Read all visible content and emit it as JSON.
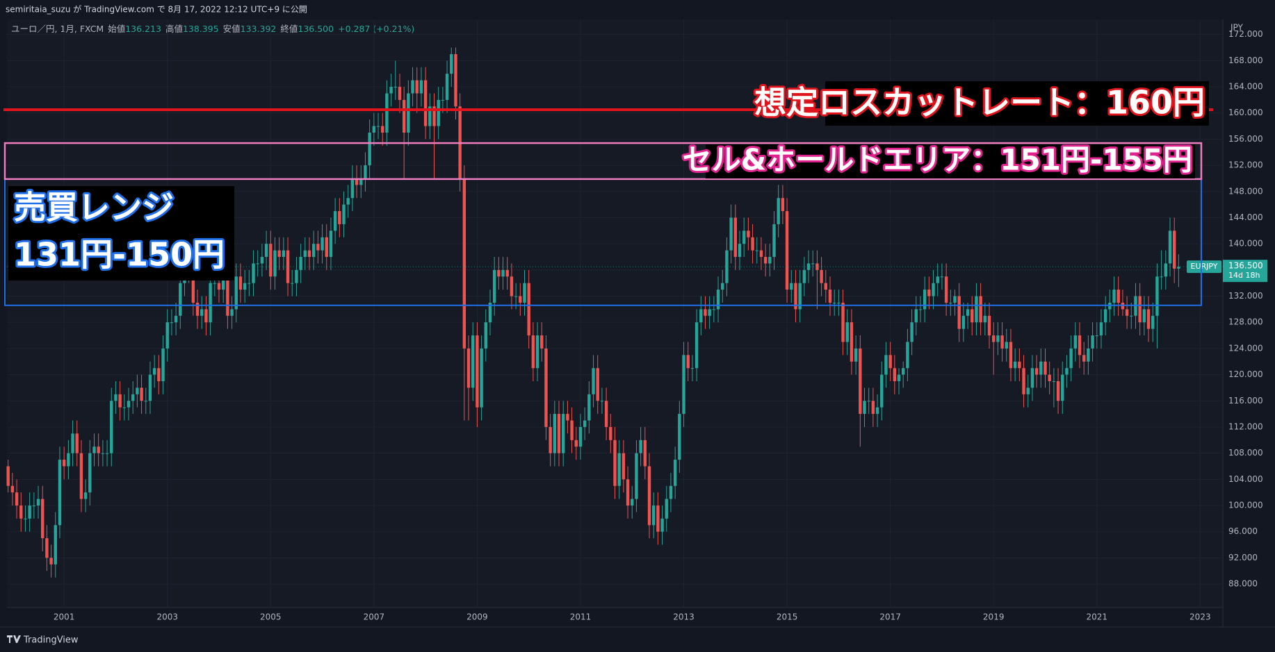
{
  "header": {
    "publisher": "semiritaia_suzu が TradingView.com で 8月 17, 2022 12:12 UTC+9 に公開",
    "brand": "TradingView"
  },
  "chart_data": {
    "type": "candlestick",
    "currency": "JPY",
    "symbol": "ユーロ／円, 1月, FXCM",
    "legend_items": [
      {
        "name": "始値",
        "value": "136.213"
      },
      {
        "name": "高値",
        "value": "138.395"
      },
      {
        "name": "安値",
        "value": "133.392"
      },
      {
        "name": "終値",
        "value": "136.500"
      }
    ],
    "change": "+0.287 (+0.21%)",
    "up_color": "#26a69a",
    "down_color": "#ef5350",
    "categories": [
      null,
      null,
      null,
      null,
      null,
      null,
      null,
      null,
      null,
      null,
      null,
      null,
      null,
      "2001",
      null,
      null,
      null,
      null,
      null,
      null,
      null,
      null,
      null,
      null,
      null,
      null,
      null,
      null,
      null,
      null,
      null,
      null,
      null,
      null,
      null,
      null,
      null,
      "2003",
      null,
      null,
      null,
      null,
      null,
      null,
      null,
      null,
      null,
      null,
      null,
      null,
      null,
      null,
      null,
      null,
      null,
      null,
      null,
      null,
      null,
      null,
      null,
      "2005",
      null,
      null,
      null,
      null,
      null,
      null,
      null,
      null,
      null,
      null,
      null,
      null,
      null,
      null,
      null,
      null,
      null,
      null,
      null,
      null,
      null,
      null,
      null,
      "2007",
      null,
      null,
      null,
      null,
      null,
      null,
      null,
      null,
      null,
      null,
      null,
      null,
      null,
      null,
      null,
      null,
      null,
      null,
      null,
      null,
      null,
      null,
      null,
      "2009",
      null,
      null,
      null,
      null,
      null,
      null,
      null,
      null,
      null,
      null,
      null,
      null,
      null,
      null,
      null,
      null,
      null,
      null,
      null,
      null,
      null,
      null,
      null,
      "2011",
      null,
      null,
      null,
      null,
      null,
      null,
      null,
      null,
      null,
      null,
      null,
      null,
      null,
      null,
      null,
      null,
      null,
      null,
      null,
      null,
      null,
      null,
      null,
      "2013",
      null,
      null,
      null,
      null,
      null,
      null,
      null,
      null,
      null,
      null,
      null,
      null,
      null,
      null,
      null,
      null,
      null,
      null,
      null,
      null,
      null,
      null,
      null,
      "2015",
      null,
      null,
      null,
      null,
      null,
      null,
      null,
      null,
      null,
      null,
      null,
      null,
      null,
      null,
      null,
      null,
      null,
      null,
      null,
      null,
      null,
      null,
      null,
      "2017",
      null,
      null,
      null,
      null,
      null,
      null,
      null,
      null,
      null,
      null,
      null,
      null,
      null,
      null,
      null,
      null,
      null,
      null,
      null,
      null,
      null,
      null,
      null,
      "2019",
      null,
      null,
      null,
      null,
      null,
      null,
      null,
      null,
      null,
      null,
      null,
      null,
      null,
      null,
      null,
      null,
      null,
      null,
      null,
      null,
      null,
      null,
      null,
      "2021",
      null,
      null,
      null,
      null,
      null,
      null,
      null,
      null,
      null,
      null,
      null,
      null,
      null,
      null,
      null,
      null,
      null,
      null,
      null,
      null,
      null,
      null,
      null,
      "2023"
    ],
    "open": [
      106,
      103,
      102,
      100,
      98,
      98,
      100,
      100,
      101,
      95,
      92,
      91,
      97,
      107,
      106,
      108,
      111,
      108,
      101,
      102,
      108,
      109,
      108,
      108,
      108,
      116,
      117,
      115,
      115,
      116,
      117,
      118,
      116,
      116,
      120,
      121,
      119,
      124,
      128,
      128,
      129,
      134,
      138,
      136,
      131,
      129,
      130,
      128,
      134,
      134,
      133,
      138,
      129,
      130,
      135,
      133,
      134,
      134,
      137,
      137,
      138,
      140,
      135,
      139,
      138,
      139,
      134,
      134,
      136,
      138,
      139,
      138,
      140,
      139,
      141,
      138,
      142,
      145,
      143,
      146,
      147,
      150,
      149,
      150,
      152,
      157,
      158,
      158,
      157,
      163,
      164,
      164,
      162,
      157,
      163,
      165,
      163,
      165,
      158,
      161,
      158,
      162,
      162,
      166,
      169,
      161,
      150,
      124,
      118,
      126,
      115,
      124,
      128,
      131,
      136,
      135,
      136,
      135,
      132,
      132,
      131,
      134,
      126,
      121,
      126,
      124,
      112,
      108,
      114,
      108,
      114,
      113,
      110,
      109,
      112,
      113,
      117,
      121,
      116,
      116,
      112,
      110,
      103,
      108,
      104,
      100,
      101,
      108,
      110,
      106,
      97,
      100,
      96,
      98,
      101,
      103,
      107,
      114,
      123,
      121,
      121,
      128,
      130,
      129,
      130,
      130,
      133,
      134,
      139,
      144,
      138,
      140,
      142,
      141,
      139,
      139,
      138,
      137,
      138,
      143,
      147,
      145,
      133,
      134,
      130,
      134,
      136,
      137,
      137,
      136,
      134,
      133,
      131,
      131,
      131,
      125,
      128,
      122,
      124,
      114,
      116,
      116,
      114,
      115,
      120,
      123,
      121,
      119,
      120,
      121,
      125,
      128,
      130,
      130,
      133,
      132,
      134,
      135,
      135,
      131,
      131,
      132,
      127,
      129,
      130,
      128,
      132,
      128,
      129,
      126,
      125,
      126,
      124,
      125,
      121,
      122,
      121,
      117,
      118,
      121,
      120,
      122,
      120,
      119,
      119,
      116,
      120,
      121,
      124,
      126,
      123,
      122,
      124,
      126,
      126,
      128,
      130,
      131,
      133,
      131,
      130,
      129,
      129,
      132,
      128,
      130,
      127,
      129,
      135,
      135,
      137,
      142,
      136.213,
      null,
      null,
      null,
      null,
      null
    ],
    "high": [
      107,
      105,
      104,
      102,
      100,
      102,
      102,
      103,
      103,
      97,
      94,
      99,
      109,
      109,
      110,
      113,
      113,
      110,
      104,
      110,
      111,
      111,
      110,
      110,
      118,
      119,
      119,
      117,
      118,
      119,
      120,
      120,
      118,
      122,
      123,
      123,
      126,
      130,
      130,
      131,
      136,
      140,
      140,
      138,
      133,
      132,
      132,
      136,
      136,
      136,
      140,
      140,
      132,
      137,
      137,
      136,
      136,
      139,
      139,
      140,
      142,
      142,
      141,
      141,
      141,
      141,
      136,
      138,
      140,
      141,
      141,
      142,
      142,
      143,
      143,
      144,
      147,
      147,
      148,
      149,
      152,
      152,
      152,
      154,
      159,
      160,
      160,
      160,
      165,
      166,
      168,
      166,
      164,
      165,
      167,
      167,
      167,
      167,
      163,
      163,
      164,
      164,
      168,
      170,
      170,
      163,
      152,
      126,
      128,
      128,
      126,
      130,
      133,
      138,
      138,
      138,
      138,
      137,
      134,
      134,
      136,
      136,
      128,
      128,
      128,
      126,
      114,
      116,
      116,
      116,
      116,
      115,
      112,
      114,
      115,
      119,
      123,
      123,
      118,
      118,
      114,
      112,
      110,
      110,
      106,
      103,
      110,
      112,
      112,
      108,
      102,
      102,
      100,
      103,
      105,
      109,
      116,
      125,
      125,
      123,
      130,
      132,
      132,
      132,
      132,
      135,
      136,
      141,
      146,
      146,
      142,
      144,
      144,
      143,
      141,
      141,
      140,
      140,
      145,
      149,
      149,
      147,
      136,
      136,
      136,
      138,
      139,
      139,
      139,
      138,
      136,
      135,
      133,
      133,
      133,
      130,
      130,
      126,
      126,
      118,
      118,
      118,
      117,
      122,
      125,
      125,
      123,
      121,
      122,
      127,
      130,
      132,
      132,
      135,
      135,
      136,
      137,
      137,
      137,
      133,
      133,
      134,
      131,
      131,
      132,
      134,
      134,
      131,
      131,
      128,
      128,
      128,
      127,
      127,
      124,
      124,
      123,
      120,
      123,
      123,
      124,
      124,
      122,
      121,
      121,
      122,
      123,
      126,
      128,
      128,
      125,
      126,
      128,
      128,
      130,
      132,
      133,
      135,
      135,
      133,
      132,
      131,
      134,
      134,
      132,
      132,
      131,
      137,
      139,
      139,
      144,
      144,
      138.395,
      null,
      null,
      null,
      null,
      null
    ],
    "low": [
      102,
      100,
      98,
      96,
      96,
      96,
      98,
      98,
      93,
      90,
      89,
      89,
      95,
      104,
      104,
      106,
      106,
      99,
      99,
      100,
      106,
      106,
      106,
      106,
      106,
      114,
      113,
      113,
      113,
      114,
      115,
      114,
      114,
      114,
      118,
      117,
      117,
      122,
      126,
      126,
      127,
      132,
      134,
      129,
      127,
      127,
      126,
      126,
      132,
      131,
      131,
      127,
      127,
      128,
      131,
      131,
      132,
      132,
      135,
      135,
      136,
      133,
      133,
      136,
      136,
      132,
      132,
      132,
      134,
      136,
      136,
      136,
      137,
      137,
      136,
      136,
      140,
      141,
      141,
      144,
      145,
      147,
      147,
      148,
      150,
      155,
      156,
      155,
      155,
      161,
      162,
      160,
      150,
      155,
      161,
      160,
      161,
      156,
      156,
      150,
      156,
      160,
      160,
      164,
      159,
      148,
      113,
      113,
      116,
      112,
      113,
      122,
      126,
      129,
      133,
      133,
      133,
      130,
      130,
      129,
      129,
      124,
      119,
      119,
      122,
      110,
      106,
      106,
      106,
      106,
      111,
      108,
      107,
      107,
      110,
      111,
      115,
      114,
      114,
      110,
      108,
      101,
      101,
      102,
      98,
      98,
      99,
      106,
      104,
      95,
      95,
      94,
      94,
      96,
      99,
      101,
      105,
      112,
      119,
      119,
      119,
      126,
      127,
      127,
      128,
      128,
      131,
      132,
      137,
      136,
      136,
      138,
      139,
      137,
      137,
      136,
      135,
      135,
      136,
      141,
      143,
      131,
      131,
      128,
      128,
      132,
      134,
      135,
      130,
      132,
      131,
      129,
      129,
      129,
      123,
      123,
      120,
      120,
      109,
      112,
      114,
      112,
      112,
      113,
      118,
      119,
      117,
      117,
      118,
      119,
      123,
      126,
      128,
      128,
      130,
      130,
      132,
      133,
      129,
      129,
      129,
      125,
      125,
      127,
      126,
      126,
      126,
      126,
      124,
      120,
      123,
      122,
      122,
      119,
      119,
      119,
      115,
      115,
      116,
      118,
      118,
      118,
      117,
      115,
      114,
      114,
      118,
      119,
      122,
      121,
      120,
      120,
      122,
      124,
      124,
      126,
      128,
      129,
      129,
      129,
      127,
      127,
      127,
      126,
      126,
      125,
      125,
      124,
      133,
      133,
      135,
      134,
      133.392,
      null,
      null,
      null,
      null,
      null
    ],
    "close": [
      103,
      102,
      100,
      98,
      98,
      100,
      100,
      101,
      95,
      92,
      91,
      97,
      107,
      106,
      108,
      111,
      108,
      101,
      102,
      108,
      109,
      108,
      108,
      108,
      116,
      117,
      115,
      115,
      116,
      117,
      118,
      116,
      116,
      120,
      121,
      119,
      124,
      128,
      128,
      129,
      134,
      138,
      136,
      131,
      129,
      130,
      128,
      134,
      134,
      133,
      138,
      129,
      130,
      135,
      133,
      134,
      134,
      137,
      137,
      138,
      140,
      135,
      139,
      138,
      139,
      134,
      134,
      136,
      138,
      139,
      138,
      140,
      139,
      141,
      138,
      142,
      145,
      143,
      146,
      147,
      150,
      149,
      150,
      152,
      157,
      158,
      158,
      157,
      163,
      164,
      164,
      162,
      157,
      163,
      165,
      163,
      165,
      158,
      161,
      158,
      162,
      162,
      166,
      169,
      161,
      150,
      124,
      118,
      126,
      115,
      124,
      128,
      131,
      136,
      135,
      136,
      135,
      132,
      132,
      131,
      134,
      126,
      121,
      126,
      124,
      112,
      108,
      114,
      108,
      114,
      113,
      110,
      109,
      112,
      113,
      117,
      121,
      116,
      116,
      112,
      110,
      103,
      108,
      104,
      100,
      101,
      108,
      110,
      106,
      97,
      100,
      96,
      98,
      101,
      103,
      107,
      114,
      123,
      121,
      121,
      128,
      130,
      129,
      130,
      130,
      133,
      134,
      139,
      144,
      138,
      140,
      142,
      141,
      139,
      139,
      138,
      137,
      138,
      143,
      147,
      145,
      133,
      134,
      130,
      134,
      136,
      137,
      137,
      136,
      134,
      133,
      131,
      131,
      131,
      125,
      128,
      122,
      124,
      114,
      116,
      116,
      114,
      115,
      120,
      123,
      121,
      119,
      120,
      121,
      125,
      128,
      130,
      130,
      133,
      132,
      134,
      135,
      135,
      131,
      131,
      132,
      127,
      129,
      130,
      128,
      132,
      128,
      129,
      126,
      125,
      126,
      124,
      125,
      121,
      122,
      121,
      117,
      118,
      121,
      120,
      122,
      120,
      119,
      119,
      116,
      120,
      121,
      124,
      126,
      123,
      122,
      124,
      126,
      126,
      128,
      130,
      131,
      133,
      131,
      130,
      129,
      129,
      132,
      128,
      130,
      127,
      129,
      135,
      135,
      137,
      142,
      136.213,
      136.5,
      null,
      null,
      null,
      null,
      null
    ],
    "ylim": [
      84.4,
      174.3
    ],
    "yticks": [
      {
        "value": 88,
        "label": "88.000"
      },
      {
        "value": 92,
        "label": "92.000"
      },
      {
        "value": 96,
        "label": "96.000"
      },
      {
        "value": 100,
        "label": "100.000"
      },
      {
        "value": 104,
        "label": "104.000"
      },
      {
        "value": 108,
        "label": "108.000"
      },
      {
        "value": 112,
        "label": "112.000"
      },
      {
        "value": 116,
        "label": "116.000"
      },
      {
        "value": 120,
        "label": "120.000"
      },
      {
        "value": 124,
        "label": "124.000"
      },
      {
        "value": 128,
        "label": "128.000"
      },
      {
        "value": 132,
        "label": "132.000"
      },
      {
        "value": 136,
        "label": "136.000"
      },
      {
        "value": 140,
        "label": "140.000"
      },
      {
        "value": 144,
        "label": "144.000"
      },
      {
        "value": 148,
        "label": "148.000"
      },
      {
        "value": 152,
        "label": "152.000"
      },
      {
        "value": 156,
        "label": "156.000"
      },
      {
        "value": 160,
        "label": "160.000"
      },
      {
        "value": 164,
        "label": "164.000"
      },
      {
        "value": 168,
        "label": "168.000"
      },
      {
        "value": 172,
        "label": "172.000"
      }
    ],
    "grid": true,
    "last_price": {
      "value": 136.5,
      "label": "136.500"
    },
    "symbol_label": "EURJPY",
    "countdown": "14d 18h",
    "hline": {
      "label": "想定ロスカットレート：160円",
      "y": 160.5,
      "color": "#e0141c"
    },
    "zones": [
      {
        "label": "セル&ホールドエリア：151円-155円",
        "ylim": [
          149.9,
          155.4
        ],
        "color": "#f07cc0"
      },
      {
        "label_lines": [
          "売買レンジ",
          "131円-150円"
        ],
        "ylim": [
          130.6,
          149.9
        ],
        "color": "#1f6fe8"
      }
    ]
  }
}
